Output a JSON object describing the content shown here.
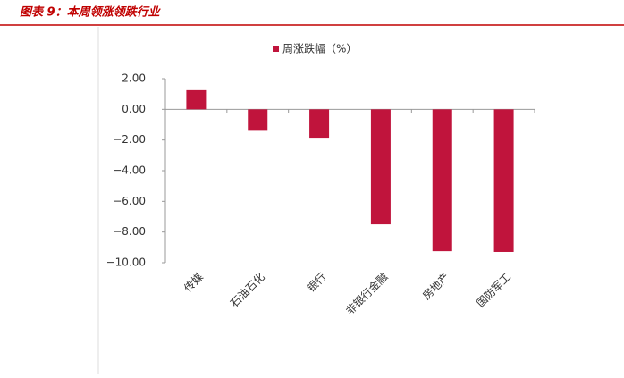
{
  "chart_data": {
    "type": "bar",
    "title": "图表 9：本周领涨领跌行业",
    "categories": [
      "传媒",
      "石油石化",
      "银行",
      "非银行金融",
      "房地产",
      "国防军工"
    ],
    "series": [
      {
        "name": "周涨跌幅（%）",
        "color": "#c0143c",
        "values": [
          1.25,
          -1.4,
          -1.85,
          -7.5,
          -9.25,
          -9.3
        ]
      }
    ],
    "ylim": [
      -10,
      2
    ],
    "yticks": [
      {
        "value": 2,
        "label": "2.00"
      },
      {
        "value": 0,
        "label": "0.00"
      },
      {
        "value": -2,
        "label": "−2.00"
      },
      {
        "value": -4,
        "label": "−4.00"
      },
      {
        "value": -6,
        "label": "−6.00"
      },
      {
        "value": -8,
        "label": "−8.00"
      },
      {
        "value": -10,
        "label": "−10.00"
      }
    ],
    "legend": "top"
  }
}
